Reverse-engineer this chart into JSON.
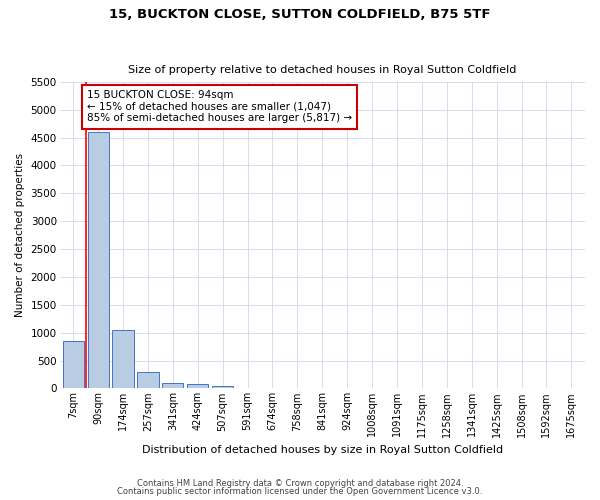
{
  "title1": "15, BUCKTON CLOSE, SUTTON COLDFIELD, B75 5TF",
  "title2": "Size of property relative to detached houses in Royal Sutton Coldfield",
  "xlabel": "Distribution of detached houses by size in Royal Sutton Coldfield",
  "ylabel": "Number of detached properties",
  "footer1": "Contains HM Land Registry data © Crown copyright and database right 2024.",
  "footer2": "Contains public sector information licensed under the Open Government Licence v3.0.",
  "annotation_line1": "15 BUCKTON CLOSE: 94sqm",
  "annotation_line2": "← 15% of detached houses are smaller (1,047)",
  "annotation_line3": "85% of semi-detached houses are larger (5,817) →",
  "bar_labels": [
    "7sqm",
    "90sqm",
    "174sqm",
    "257sqm",
    "341sqm",
    "424sqm",
    "507sqm",
    "591sqm",
    "674sqm",
    "758sqm",
    "841sqm",
    "924sqm",
    "1008sqm",
    "1091sqm",
    "1175sqm",
    "1258sqm",
    "1341sqm",
    "1425sqm",
    "1508sqm",
    "1592sqm",
    "1675sqm"
  ],
  "bar_values": [
    850,
    4600,
    1050,
    290,
    90,
    75,
    50,
    0,
    0,
    0,
    0,
    0,
    0,
    0,
    0,
    0,
    0,
    0,
    0,
    0,
    0
  ],
  "bar_color": "#b8cce4",
  "bar_edge_color": "#4472c4",
  "red_line_x": 0.5,
  "ylim": [
    0,
    5500
  ],
  "yticks": [
    0,
    500,
    1000,
    1500,
    2000,
    2500,
    3000,
    3500,
    4000,
    4500,
    5000,
    5500
  ],
  "annotation_box_color": "#ffffff",
  "annotation_box_edge": "#cc0000",
  "bg_color": "#ffffff",
  "grid_color": "#d0d8e8"
}
